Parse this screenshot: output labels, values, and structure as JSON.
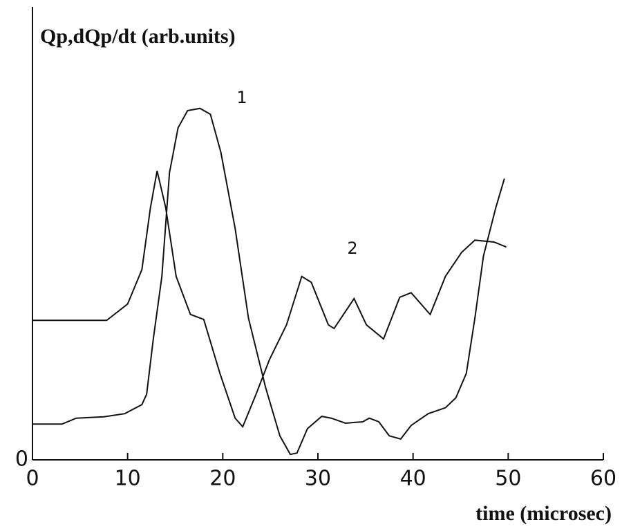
{
  "chart_data": {
    "type": "line",
    "ylabel": "Qp,dQp/dt (arb.units)",
    "xlabel": "time (microsec)",
    "xlim": [
      0,
      60
    ],
    "xticks": [
      0,
      10,
      20,
      30,
      40,
      50,
      60
    ],
    "ylim": [
      0,
      100
    ],
    "yticks": [
      0
    ],
    "color": "#111111",
    "series": [
      {
        "name": "1",
        "x": [
          0,
          3.1,
          4.6,
          7.5,
          9.7,
          11.5,
          12.0,
          12.7,
          13.6,
          14.4,
          15.3,
          16.3,
          17.6,
          18.7,
          19.8,
          21.3,
          22.7,
          24.5,
          26.0,
          27.1,
          27.8,
          28.9,
          30.4,
          31.4,
          32.9,
          34.7,
          35.4,
          36.4,
          37.5,
          38.7,
          39.8,
          41.6,
          43.4,
          44.5,
          45.6,
          46.5,
          47.4,
          48.7,
          49.6
        ],
        "values": [
          7.9,
          7.9,
          9.2,
          9.5,
          10.2,
          12.2,
          14.5,
          26.7,
          40.5,
          63.4,
          73.3,
          77.1,
          77.6,
          76.3,
          67.9,
          51.1,
          31.3,
          16,
          5.3,
          1.2,
          1.5,
          6.9,
          9.6,
          9.2,
          8.1,
          8.4,
          9.2,
          8.4,
          5.3,
          4.6,
          7.6,
          10.2,
          11.5,
          13.7,
          19.1,
          31.3,
          45,
          55.7,
          62.1
        ]
      },
      {
        "name": "2",
        "x": [
          0,
          5,
          7.8,
          10.0,
          11.5,
          12.4,
          13.1,
          14.0,
          15.1,
          16.6,
          18.0,
          19.7,
          21.3,
          22.1,
          23.5,
          24.9,
          26.7,
          28.3,
          29.3,
          31.1,
          31.7,
          33.8,
          35.1,
          36.9,
          38.6,
          39.8,
          41.8,
          43.4,
          45.1,
          46.5,
          48.5,
          49.8
        ],
        "values": [
          30.8,
          30.8,
          30.8,
          34.4,
          42,
          55.7,
          63.8,
          55.7,
          40.5,
          32.1,
          31,
          19.1,
          9.2,
          7.3,
          14.5,
          22.1,
          29.8,
          40.5,
          39.2,
          29.8,
          29,
          35.6,
          29.8,
          26.7,
          35.9,
          36.9,
          32.1,
          40.5,
          45.8,
          48.5,
          48.1,
          47
        ]
      }
    ]
  }
}
